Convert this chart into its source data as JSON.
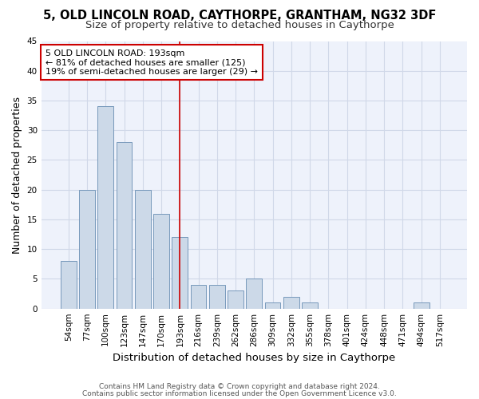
{
  "title1": "5, OLD LINCOLN ROAD, CAYTHORPE, GRANTHAM, NG32 3DF",
  "title2": "Size of property relative to detached houses in Caythorpe",
  "xlabel": "Distribution of detached houses by size in Caythorpe",
  "ylabel": "Number of detached properties",
  "categories": [
    "54sqm",
    "77sqm",
    "100sqm",
    "123sqm",
    "147sqm",
    "170sqm",
    "193sqm",
    "216sqm",
    "239sqm",
    "262sqm",
    "286sqm",
    "309sqm",
    "332sqm",
    "355sqm",
    "378sqm",
    "401sqm",
    "424sqm",
    "448sqm",
    "471sqm",
    "494sqm",
    "517sqm"
  ],
  "values": [
    8,
    20,
    34,
    28,
    20,
    16,
    12,
    4,
    4,
    3,
    5,
    1,
    2,
    1,
    0,
    0,
    0,
    0,
    0,
    1,
    0
  ],
  "bar_color": "#ccd9e8",
  "bar_edge_color": "#7799bb",
  "highlight_index": 6,
  "vline_color": "#cc0000",
  "annotation_line1": "5 OLD LINCOLN ROAD: 193sqm",
  "annotation_line2": "← 81% of detached houses are smaller (125)",
  "annotation_line3": "19% of semi-detached houses are larger (29) →",
  "annotation_box_color": "#ffffff",
  "annotation_box_edge": "#cc0000",
  "ylim": [
    0,
    45
  ],
  "yticks": [
    0,
    5,
    10,
    15,
    20,
    25,
    30,
    35,
    40,
    45
  ],
  "grid_color": "#d0d8e8",
  "background_color": "#eef2fb",
  "footer1": "Contains HM Land Registry data © Crown copyright and database right 2024.",
  "footer2": "Contains public sector information licensed under the Open Government Licence v3.0.",
  "title_fontsize": 10.5,
  "subtitle_fontsize": 9.5,
  "ylabel_fontsize": 9,
  "xlabel_fontsize": 9.5,
  "tick_fontsize": 7.5,
  "annotation_fontsize": 8,
  "footer_fontsize": 6.5
}
